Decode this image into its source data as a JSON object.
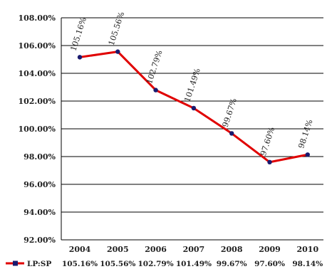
{
  "chart_data": {
    "type": "line",
    "title": "",
    "xlabel": "",
    "ylabel": "",
    "categories": [
      "2004",
      "2005",
      "2006",
      "2007",
      "2008",
      "2009",
      "2010"
    ],
    "ylim": [
      92,
      108
    ],
    "yticks": [
      "92.00%",
      "94.00%",
      "96.00%",
      "98.00%",
      "100.00%",
      "102.00%",
      "104.00%",
      "106.00%",
      "108.00%"
    ],
    "grid": true,
    "legend_position": "bottom",
    "series": [
      {
        "name": "LP:SP",
        "color": "#e00000",
        "marker_color": "#1a1a6e",
        "values": [
          105.16,
          105.56,
          102.79,
          101.49,
          99.67,
          97.6,
          98.14
        ],
        "labels": [
          "105.16%",
          "105.56%",
          "102.79%",
          "101.49%",
          "99.67%",
          "97.60%",
          "98.14%"
        ],
        "table_labels": [
          "105.16%",
          "105.56%",
          "102.79%",
          "101.49%",
          "99.67%",
          "97.60%",
          "98.14%"
        ]
      }
    ]
  }
}
